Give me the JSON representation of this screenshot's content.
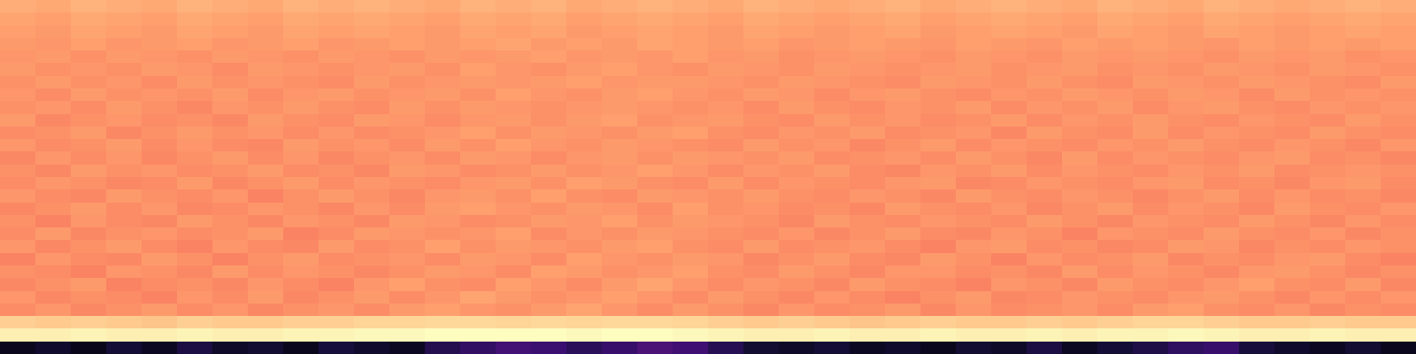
{
  "chart_data": {
    "type": "heatmap",
    "tick_labels": false,
    "grid": false,
    "zlim": [
      0,
      1
    ],
    "cells": [
      [
        0.05,
        0.08,
        0.04,
        0.1,
        0.06,
        0.12,
        0.07,
        0.09,
        0.05,
        0.11,
        0.08,
        0.06,
        0.14,
        0.18,
        0.22,
        0.2,
        0.16,
        0.19,
        0.24,
        0.21,
        0.15,
        0.09,
        0.07,
        0.1,
        0.06,
        0.08,
        0.05,
        0.09,
        0.07,
        0.12,
        0.06,
        0.1,
        0.13,
        0.17,
        0.19,
        0.11,
        0.08,
        0.06,
        0.09,
        0.05
      ],
      [
        0.97,
        0.97,
        0.98,
        0.97,
        0.97,
        0.98,
        0.97,
        0.97,
        0.98,
        0.98,
        0.99,
        0.99,
        1.0,
        1.0,
        1.0,
        1.0,
        0.99,
        1.0,
        1.0,
        0.99,
        0.98,
        0.97,
        0.97,
        0.98,
        0.97,
        0.97,
        0.98,
        0.97,
        0.97,
        0.98,
        0.97,
        0.98,
        0.98,
        0.99,
        0.98,
        0.97,
        0.97,
        0.98,
        0.97,
        0.97
      ],
      [
        0.9,
        0.89,
        0.9,
        0.89,
        0.88,
        0.9,
        0.89,
        0.89,
        0.9,
        0.9,
        0.91,
        0.91,
        0.92,
        0.92,
        0.91,
        0.92,
        0.91,
        0.92,
        0.92,
        0.91,
        0.9,
        0.89,
        0.9,
        0.89,
        0.88,
        0.89,
        0.9,
        0.89,
        0.89,
        0.9,
        0.89,
        0.9,
        0.91,
        0.91,
        0.9,
        0.89,
        0.89,
        0.9,
        0.89,
        0.89
      ],
      [
        0.76,
        0.78,
        0.75,
        0.77,
        0.79,
        0.76,
        0.78,
        0.75,
        0.77,
        0.78,
        0.76,
        0.79,
        0.8,
        0.78,
        0.77,
        0.79,
        0.81,
        0.78,
        0.76,
        0.79,
        0.77,
        0.75,
        0.78,
        0.76,
        0.77,
        0.79,
        0.75,
        0.78,
        0.76,
        0.77,
        0.78,
        0.76,
        0.79,
        0.8,
        0.77,
        0.76,
        0.78,
        0.75,
        0.77,
        0.76
      ],
      [
        0.78,
        0.75,
        0.77,
        0.76,
        0.74,
        0.78,
        0.76,
        0.79,
        0.75,
        0.77,
        0.79,
        0.76,
        0.78,
        0.81,
        0.79,
        0.77,
        0.78,
        0.8,
        0.78,
        0.76,
        0.79,
        0.77,
        0.75,
        0.78,
        0.76,
        0.74,
        0.77,
        0.79,
        0.75,
        0.76,
        0.78,
        0.77,
        0.76,
        0.78,
        0.79,
        0.77,
        0.75,
        0.78,
        0.76,
        0.78
      ],
      [
        0.75,
        0.77,
        0.79,
        0.74,
        0.76,
        0.77,
        0.75,
        0.78,
        0.76,
        0.74,
        0.78,
        0.8,
        0.77,
        0.76,
        0.8,
        0.78,
        0.76,
        0.79,
        0.81,
        0.78,
        0.76,
        0.78,
        0.77,
        0.75,
        0.79,
        0.77,
        0.76,
        0.74,
        0.78,
        0.77,
        0.75,
        0.79,
        0.77,
        0.76,
        0.78,
        0.8,
        0.77,
        0.76,
        0.79,
        0.75
      ],
      [
        0.77,
        0.76,
        0.74,
        0.78,
        0.77,
        0.75,
        0.79,
        0.76,
        0.78,
        0.77,
        0.75,
        0.77,
        0.79,
        0.78,
        0.76,
        0.8,
        0.79,
        0.77,
        0.78,
        0.8,
        0.77,
        0.76,
        0.79,
        0.77,
        0.75,
        0.78,
        0.78,
        0.76,
        0.77,
        0.75,
        0.79,
        0.76,
        0.78,
        0.77,
        0.75,
        0.78,
        0.79,
        0.77,
        0.75,
        0.77
      ],
      [
        0.74,
        0.78,
        0.76,
        0.75,
        0.79,
        0.77,
        0.74,
        0.77,
        0.79,
        0.76,
        0.77,
        0.78,
        0.76,
        0.79,
        0.78,
        0.76,
        0.8,
        0.78,
        0.77,
        0.79,
        0.78,
        0.75,
        0.77,
        0.79,
        0.76,
        0.75,
        0.79,
        0.77,
        0.74,
        0.78,
        0.76,
        0.77,
        0.79,
        0.75,
        0.77,
        0.76,
        0.78,
        0.79,
        0.76,
        0.74
      ],
      [
        0.78,
        0.75,
        0.77,
        0.79,
        0.76,
        0.74,
        0.78,
        0.76,
        0.75,
        0.79,
        0.76,
        0.77,
        0.8,
        0.77,
        0.79,
        0.78,
        0.77,
        0.79,
        0.8,
        0.77,
        0.76,
        0.79,
        0.76,
        0.77,
        0.78,
        0.76,
        0.74,
        0.78,
        0.79,
        0.76,
        0.77,
        0.75,
        0.76,
        0.79,
        0.78,
        0.75,
        0.77,
        0.76,
        0.78,
        0.77
      ],
      [
        0.76,
        0.79,
        0.75,
        0.77,
        0.78,
        0.76,
        0.77,
        0.79,
        0.74,
        0.76,
        0.79,
        0.78,
        0.77,
        0.78,
        0.8,
        0.76,
        0.78,
        0.77,
        0.79,
        0.78,
        0.77,
        0.76,
        0.78,
        0.75,
        0.77,
        0.79,
        0.76,
        0.75,
        0.78,
        0.77,
        0.74,
        0.78,
        0.77,
        0.76,
        0.79,
        0.77,
        0.76,
        0.78,
        0.75,
        0.77
      ],
      [
        0.77,
        0.74,
        0.78,
        0.76,
        0.75,
        0.79,
        0.77,
        0.75,
        0.78,
        0.77,
        0.75,
        0.79,
        0.78,
        0.76,
        0.77,
        0.79,
        0.78,
        0.8,
        0.77,
        0.79,
        0.78,
        0.77,
        0.75,
        0.79,
        0.77,
        0.76,
        0.78,
        0.77,
        0.76,
        0.79,
        0.77,
        0.75,
        0.78,
        0.77,
        0.76,
        0.79,
        0.77,
        0.75,
        0.78,
        0.76
      ],
      [
        0.75,
        0.77,
        0.79,
        0.76,
        0.78,
        0.75,
        0.76,
        0.78,
        0.77,
        0.75,
        0.78,
        0.76,
        0.79,
        0.8,
        0.78,
        0.77,
        0.79,
        0.78,
        0.76,
        0.8,
        0.77,
        0.78,
        0.76,
        0.77,
        0.75,
        0.79,
        0.77,
        0.76,
        0.78,
        0.75,
        0.77,
        0.79,
        0.76,
        0.78,
        0.77,
        0.75,
        0.79,
        0.77,
        0.76,
        0.78
      ],
      [
        0.78,
        0.76,
        0.75,
        0.79,
        0.77,
        0.76,
        0.78,
        0.74,
        0.77,
        0.79,
        0.77,
        0.75,
        0.78,
        0.79,
        0.77,
        0.8,
        0.77,
        0.76,
        0.79,
        0.78,
        0.77,
        0.79,
        0.77,
        0.76,
        0.78,
        0.77,
        0.75,
        0.79,
        0.77,
        0.76,
        0.78,
        0.77,
        0.75,
        0.77,
        0.79,
        0.76,
        0.78,
        0.76,
        0.77,
        0.75
      ],
      [
        0.76,
        0.78,
        0.77,
        0.75,
        0.76,
        0.79,
        0.75,
        0.77,
        0.79,
        0.76,
        0.78,
        0.77,
        0.76,
        0.78,
        0.79,
        0.77,
        0.8,
        0.79,
        0.77,
        0.76,
        0.79,
        0.76,
        0.78,
        0.77,
        0.76,
        0.78,
        0.79,
        0.75,
        0.76,
        0.78,
        0.77,
        0.76,
        0.78,
        0.79,
        0.76,
        0.77,
        0.75,
        0.78,
        0.79,
        0.76
      ],
      [
        0.77,
        0.75,
        0.79,
        0.77,
        0.78,
        0.76,
        0.77,
        0.79,
        0.76,
        0.77,
        0.75,
        0.79,
        0.78,
        0.76,
        0.77,
        0.79,
        0.77,
        0.78,
        0.8,
        0.78,
        0.76,
        0.78,
        0.77,
        0.79,
        0.76,
        0.75,
        0.78,
        0.77,
        0.79,
        0.76,
        0.78,
        0.77,
        0.76,
        0.78,
        0.77,
        0.79,
        0.76,
        0.77,
        0.78,
        0.77
      ],
      [
        0.75,
        0.78,
        0.76,
        0.78,
        0.75,
        0.77,
        0.79,
        0.76,
        0.78,
        0.75,
        0.77,
        0.78,
        0.76,
        0.79,
        0.78,
        0.76,
        0.78,
        0.79,
        0.77,
        0.79,
        0.78,
        0.77,
        0.79,
        0.76,
        0.77,
        0.78,
        0.76,
        0.79,
        0.77,
        0.75,
        0.79,
        0.76,
        0.78,
        0.77,
        0.76,
        0.78,
        0.79,
        0.76,
        0.77,
        0.75
      ],
      [
        0.78,
        0.76,
        0.77,
        0.79,
        0.76,
        0.78,
        0.76,
        0.75,
        0.79,
        0.77,
        0.78,
        0.76,
        0.79,
        0.77,
        0.8,
        0.78,
        0.77,
        0.79,
        0.78,
        0.77,
        0.76,
        0.79,
        0.77,
        0.78,
        0.75,
        0.77,
        0.79,
        0.76,
        0.78,
        0.77,
        0.76,
        0.78,
        0.77,
        0.79,
        0.77,
        0.76,
        0.78,
        0.77,
        0.75,
        0.78
      ],
      [
        0.76,
        0.77,
        0.79,
        0.75,
        0.77,
        0.79,
        0.77,
        0.78,
        0.76,
        0.78,
        0.76,
        0.77,
        0.78,
        0.8,
        0.77,
        0.79,
        0.78,
        0.77,
        0.79,
        0.8,
        0.77,
        0.76,
        0.78,
        0.77,
        0.79,
        0.76,
        0.77,
        0.78,
        0.75,
        0.79,
        0.77,
        0.76,
        0.79,
        0.76,
        0.78,
        0.77,
        0.76,
        0.79,
        0.77,
        0.76
      ],
      [
        0.79,
        0.75,
        0.77,
        0.78,
        0.76,
        0.77,
        0.75,
        0.79,
        0.77,
        0.76,
        0.79,
        0.78,
        0.76,
        0.78,
        0.79,
        0.77,
        0.79,
        0.8,
        0.77,
        0.78,
        0.79,
        0.77,
        0.76,
        0.79,
        0.77,
        0.78,
        0.76,
        0.77,
        0.79,
        0.76,
        0.78,
        0.77,
        0.79,
        0.77,
        0.76,
        0.78,
        0.77,
        0.76,
        0.79,
        0.77
      ],
      [
        0.77,
        0.78,
        0.76,
        0.79,
        0.77,
        0.75,
        0.78,
        0.77,
        0.79,
        0.77,
        0.76,
        0.79,
        0.77,
        0.79,
        0.78,
        0.77,
        0.78,
        0.79,
        0.78,
        0.77,
        0.78,
        0.76,
        0.79,
        0.77,
        0.76,
        0.78,
        0.77,
        0.79,
        0.76,
        0.78,
        0.77,
        0.79,
        0.76,
        0.78,
        0.79,
        0.77,
        0.76,
        0.78,
        0.77,
        0.78
      ],
      [
        0.78,
        0.76,
        0.79,
        0.77,
        0.78,
        0.77,
        0.79,
        0.76,
        0.78,
        0.79,
        0.77,
        0.78,
        0.79,
        0.77,
        0.8,
        0.78,
        0.77,
        0.79,
        0.8,
        0.78,
        0.77,
        0.79,
        0.78,
        0.76,
        0.78,
        0.79,
        0.77,
        0.76,
        0.78,
        0.77,
        0.79,
        0.78,
        0.77,
        0.79,
        0.78,
        0.76,
        0.79,
        0.77,
        0.78,
        0.77
      ],
      [
        0.77,
        0.79,
        0.77,
        0.78,
        0.76,
        0.79,
        0.77,
        0.78,
        0.77,
        0.76,
        0.79,
        0.77,
        0.78,
        0.79,
        0.78,
        0.79,
        0.8,
        0.78,
        0.79,
        0.79,
        0.78,
        0.77,
        0.79,
        0.78,
        0.77,
        0.76,
        0.79,
        0.78,
        0.77,
        0.79,
        0.77,
        0.76,
        0.79,
        0.78,
        0.77,
        0.79,
        0.78,
        0.77,
        0.76,
        0.79
      ],
      [
        0.79,
        0.77,
        0.78,
        0.77,
        0.79,
        0.78,
        0.76,
        0.79,
        0.78,
        0.77,
        0.78,
        0.79,
        0.77,
        0.8,
        0.78,
        0.77,
        0.79,
        0.8,
        0.78,
        0.77,
        0.79,
        0.78,
        0.77,
        0.79,
        0.78,
        0.77,
        0.78,
        0.79,
        0.77,
        0.78,
        0.79,
        0.77,
        0.78,
        0.77,
        0.79,
        0.78,
        0.77,
        0.79,
        0.78,
        0.77
      ],
      [
        0.78,
        0.79,
        0.77,
        0.79,
        0.78,
        0.77,
        0.79,
        0.78,
        0.77,
        0.79,
        0.78,
        0.77,
        0.79,
        0.78,
        0.79,
        0.8,
        0.78,
        0.79,
        0.78,
        0.8,
        0.78,
        0.79,
        0.77,
        0.78,
        0.79,
        0.78,
        0.77,
        0.79,
        0.78,
        0.77,
        0.79,
        0.78,
        0.79,
        0.78,
        0.77,
        0.79,
        0.78,
        0.79,
        0.77,
        0.78
      ],
      [
        0.79,
        0.78,
        0.8,
        0.78,
        0.79,
        0.8,
        0.78,
        0.79,
        0.8,
        0.78,
        0.79,
        0.8,
        0.79,
        0.8,
        0.81,
        0.79,
        0.8,
        0.79,
        0.81,
        0.8,
        0.79,
        0.8,
        0.78,
        0.79,
        0.8,
        0.79,
        0.78,
        0.8,
        0.79,
        0.78,
        0.8,
        0.79,
        0.8,
        0.79,
        0.78,
        0.8,
        0.79,
        0.8,
        0.79,
        0.8
      ],
      [
        0.8,
        0.79,
        0.81,
        0.8,
        0.79,
        0.81,
        0.8,
        0.79,
        0.81,
        0.8,
        0.81,
        0.8,
        0.79,
        0.81,
        0.8,
        0.81,
        0.79,
        0.8,
        0.81,
        0.8,
        0.79,
        0.81,
        0.8,
        0.79,
        0.8,
        0.81,
        0.79,
        0.8,
        0.81,
        0.8,
        0.79,
        0.81,
        0.8,
        0.79,
        0.81,
        0.8,
        0.79,
        0.8,
        0.81,
        0.8
      ],
      [
        0.81,
        0.8,
        0.82,
        0.81,
        0.8,
        0.82,
        0.81,
        0.8,
        0.82,
        0.81,
        0.82,
        0.81,
        0.8,
        0.82,
        0.81,
        0.82,
        0.8,
        0.81,
        0.82,
        0.81,
        0.8,
        0.82,
        0.81,
        0.8,
        0.81,
        0.82,
        0.8,
        0.81,
        0.82,
        0.81,
        0.8,
        0.82,
        0.81,
        0.8,
        0.82,
        0.81,
        0.8,
        0.81,
        0.82,
        0.81
      ],
      [
        0.83,
        0.82,
        0.84,
        0.83,
        0.82,
        0.84,
        0.83,
        0.82,
        0.84,
        0.83,
        0.84,
        0.83,
        0.82,
        0.84,
        0.83,
        0.84,
        0.82,
        0.83,
        0.84,
        0.83,
        0.82,
        0.84,
        0.83,
        0.82,
        0.83,
        0.84,
        0.82,
        0.83,
        0.84,
        0.83,
        0.82,
        0.84,
        0.83,
        0.82,
        0.84,
        0.83,
        0.82,
        0.83,
        0.84,
        0.83
      ]
    ]
  }
}
